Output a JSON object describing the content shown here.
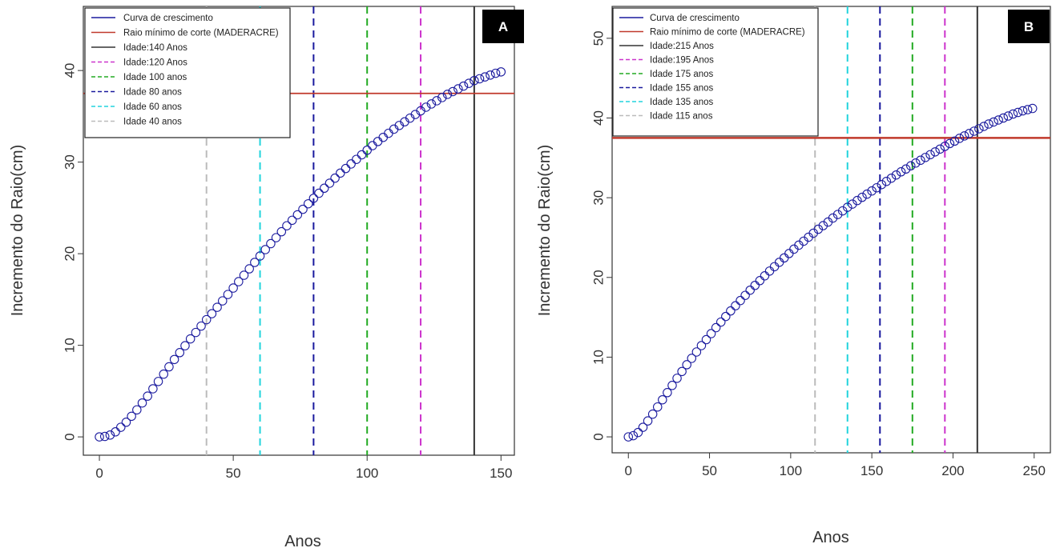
{
  "chart_data": [
    {
      "type": "scatter",
      "panel_label": "A",
      "xlabel": "Anos",
      "ylabel": "Incremento do Raio(cm)",
      "xlim": [
        -6,
        155
      ],
      "ylim": [
        -2,
        47
      ],
      "xticks": [
        0,
        50,
        100,
        150
      ],
      "yticks": [
        0,
        10,
        20,
        30,
        40
      ],
      "grid": false,
      "legend_position": "top-left",
      "series": [
        {
          "name": "Curva de crescimento",
          "color": "#1a1a9e",
          "marker": "open-circle",
          "x": [
            0,
            2,
            4,
            6,
            8,
            10,
            12,
            14,
            16,
            18,
            20,
            22,
            24,
            26,
            28,
            30,
            32,
            34,
            36,
            38,
            40,
            42,
            44,
            46,
            48,
            50,
            52,
            54,
            56,
            58,
            60,
            62,
            64,
            66,
            68,
            70,
            72,
            74,
            76,
            78,
            80,
            82,
            84,
            86,
            88,
            90,
            92,
            94,
            96,
            98,
            100,
            102,
            104,
            106,
            108,
            110,
            112,
            114,
            116,
            118,
            120,
            122,
            124,
            126,
            128,
            130,
            132,
            134,
            136,
            138,
            140,
            142,
            144,
            146,
            148,
            150
          ],
          "y": [
            0,
            0.05,
            0.2,
            0.55,
            1.05,
            1.6,
            2.25,
            2.95,
            3.7,
            4.45,
            5.25,
            6.05,
            6.85,
            7.65,
            8.45,
            9.2,
            9.95,
            10.7,
            11.4,
            12.1,
            12.8,
            13.45,
            14.15,
            14.85,
            15.55,
            16.25,
            16.95,
            17.65,
            18.35,
            19.05,
            19.75,
            20.45,
            21.1,
            21.75,
            22.4,
            23.05,
            23.65,
            24.25,
            24.85,
            25.45,
            26.05,
            26.6,
            27.15,
            27.7,
            28.25,
            28.8,
            29.3,
            29.8,
            30.3,
            30.8,
            31.3,
            31.8,
            32.25,
            32.7,
            33.15,
            33.6,
            34.0,
            34.4,
            34.8,
            35.2,
            35.6,
            36.0,
            36.35,
            36.7,
            37.05,
            37.4,
            37.7,
            38.0,
            38.3,
            38.6,
            38.9,
            39.1,
            39.3,
            39.5,
            39.7,
            39.85
          ]
        }
      ],
      "reference_lines": [
        {
          "name": "Raio mínimo de corte (MADERACRE)",
          "orientation": "horizontal",
          "value": 37.5,
          "color": "#c0392b",
          "style": "solid"
        },
        {
          "name": "Idade:140 Anos",
          "orientation": "vertical",
          "value": 140,
          "color": "#333333",
          "style": "solid"
        },
        {
          "name": "Idade:120 Anos",
          "orientation": "vertical",
          "value": 120,
          "color": "#cc33cc",
          "style": "dashed"
        },
        {
          "name": "Idade 100 anos",
          "orientation": "vertical",
          "value": 100,
          "color": "#22aa22",
          "style": "dashed"
        },
        {
          "name": "Idade 80 anos",
          "orientation": "vertical",
          "value": 80,
          "color": "#1a1a9e",
          "style": "dashed"
        },
        {
          "name": "Idade 60 anos",
          "orientation": "vertical",
          "value": 60,
          "color": "#22d4dd",
          "style": "dashed"
        },
        {
          "name": "Idade 40 anos",
          "orientation": "vertical",
          "value": 40,
          "color": "#bbbbbb",
          "style": "dashed"
        }
      ]
    },
    {
      "type": "scatter",
      "panel_label": "B",
      "xlabel": "Anos",
      "ylabel": "Incremento do Raio(cm)",
      "xlim": [
        -10,
        260
      ],
      "ylim": [
        -2,
        54
      ],
      "xticks": [
        0,
        50,
        100,
        150,
        200,
        250
      ],
      "yticks": [
        0,
        10,
        20,
        30,
        40,
        50
      ],
      "grid": false,
      "legend_position": "top-left",
      "series": [
        {
          "name": "Curva de crescimento",
          "color": "#1a1a9e",
          "marker": "open-circle",
          "x": [
            0,
            3,
            6,
            9,
            12,
            15,
            18,
            21,
            24,
            27,
            30,
            33,
            36,
            39,
            42,
            45,
            48,
            51,
            54,
            57,
            60,
            63,
            66,
            69,
            72,
            75,
            78,
            81,
            84,
            87,
            90,
            93,
            96,
            99,
            102,
            105,
            108,
            111,
            114,
            117,
            120,
            123,
            126,
            129,
            132,
            135,
            138,
            141,
            144,
            147,
            150,
            153,
            156,
            159,
            162,
            165,
            168,
            171,
            174,
            177,
            180,
            183,
            186,
            189,
            192,
            195,
            198,
            201,
            204,
            207,
            210,
            213,
            216,
            219,
            222,
            225,
            228,
            231,
            234,
            237,
            240,
            243,
            246,
            249
          ],
          "y": [
            0,
            0.15,
            0.55,
            1.2,
            2.0,
            2.85,
            3.75,
            4.65,
            5.55,
            6.45,
            7.35,
            8.2,
            9.05,
            9.85,
            10.65,
            11.45,
            12.2,
            12.95,
            13.7,
            14.4,
            15.1,
            15.8,
            16.45,
            17.1,
            17.75,
            18.4,
            19.0,
            19.6,
            20.2,
            20.8,
            21.35,
            21.9,
            22.45,
            23.0,
            23.55,
            24.05,
            24.55,
            25.05,
            25.55,
            26.05,
            26.5,
            26.95,
            27.45,
            27.9,
            28.35,
            28.8,
            29.2,
            29.65,
            30.05,
            30.45,
            30.85,
            31.25,
            31.65,
            32.05,
            32.45,
            32.85,
            33.25,
            33.6,
            34.0,
            34.35,
            34.7,
            35.05,
            35.4,
            35.75,
            36.1,
            36.45,
            36.8,
            37.1,
            37.45,
            37.75,
            38.05,
            38.35,
            38.65,
            38.95,
            39.25,
            39.5,
            39.75,
            40.0,
            40.25,
            40.5,
            40.7,
            40.9,
            41.05,
            41.2
          ]
        }
      ],
      "reference_lines": [
        {
          "name": "Raio mínimo de corte (MADERACRE)",
          "orientation": "horizontal",
          "value": 37.5,
          "color": "#c0392b",
          "style": "solid"
        },
        {
          "name": "Idade:215 Anos",
          "orientation": "vertical",
          "value": 215,
          "color": "#333333",
          "style": "solid"
        },
        {
          "name": "Idade:195 Anos",
          "orientation": "vertical",
          "value": 195,
          "color": "#cc33cc",
          "style": "dashed"
        },
        {
          "name": "Idade 175 anos",
          "orientation": "vertical",
          "value": 175,
          "color": "#22aa22",
          "style": "dashed"
        },
        {
          "name": "Idade 155 anos",
          "orientation": "vertical",
          "value": 155,
          "color": "#1a1a9e",
          "style": "dashed"
        },
        {
          "name": "Idade 135 anos",
          "orientation": "vertical",
          "value": 135,
          "color": "#22d4dd",
          "style": "dashed"
        },
        {
          "name": "Idade 115 anos",
          "orientation": "vertical",
          "value": 115,
          "color": "#bbbbbb",
          "style": "dashed"
        }
      ]
    }
  ]
}
